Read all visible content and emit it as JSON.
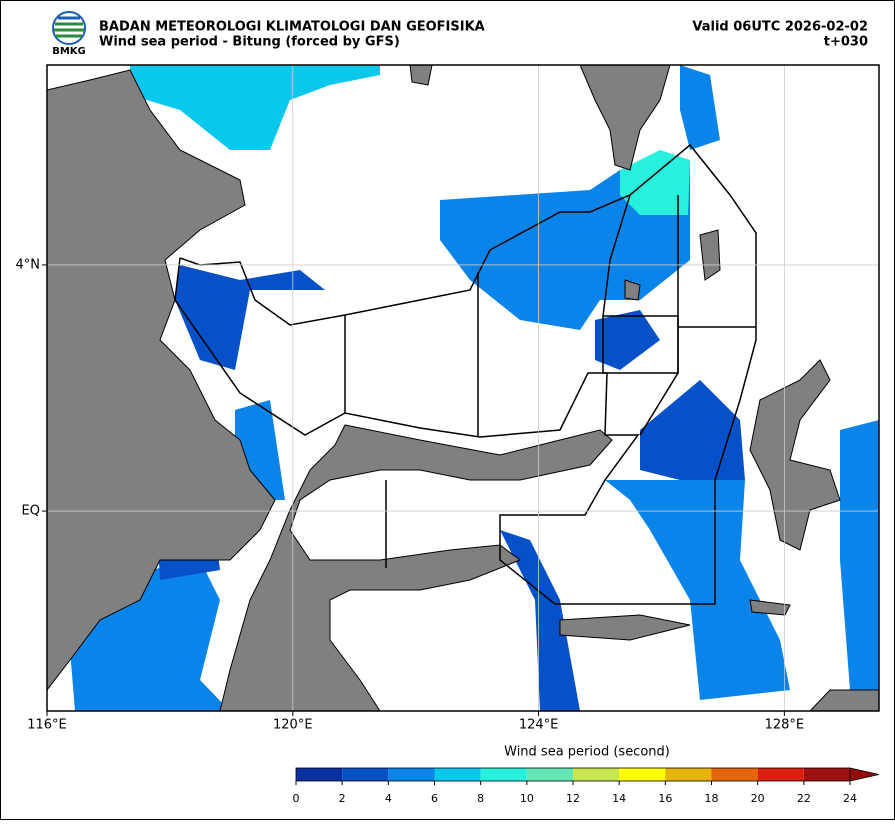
{
  "header": {
    "logo_text": "BMKG",
    "title": "BADAN METEOROLOGI KLIMATOLOGI DAN GEOFISIKA",
    "subtitle": "Wind sea period - Bitung (forced by GFS)",
    "valid": "Valid 06UTC 2026-02-02",
    "step": "t+030"
  },
  "map": {
    "lon_range": [
      116,
      129.54
    ],
    "lat_range": [
      -3.25,
      7.25
    ],
    "lon_ticks": [
      {
        "value": 116,
        "label": "116°E"
      },
      {
        "value": 120,
        "label": "120°E"
      },
      {
        "value": 124,
        "label": "124°E"
      },
      {
        "value": 128,
        "label": "128°E"
      }
    ],
    "lat_ticks": [
      {
        "value": 4,
        "label": "4°N"
      },
      {
        "value": 0,
        "label": "EQ"
      }
    ],
    "colorbar": {
      "label": "Wind sea period (second)",
      "ticks": [
        0,
        2,
        4,
        6,
        8,
        10,
        12,
        14,
        16,
        18,
        20,
        22,
        24
      ],
      "colors": [
        "#0a2fa0",
        "#0650c8",
        "#0a84e8",
        "#0ac8ec",
        "#28f0dc",
        "#64e6b4",
        "#c8e650",
        "#ffff00",
        "#e6b40a",
        "#e6640a",
        "#dc2010",
        "#a01010"
      ],
      "extend_color": "#960c0c"
    }
  }
}
